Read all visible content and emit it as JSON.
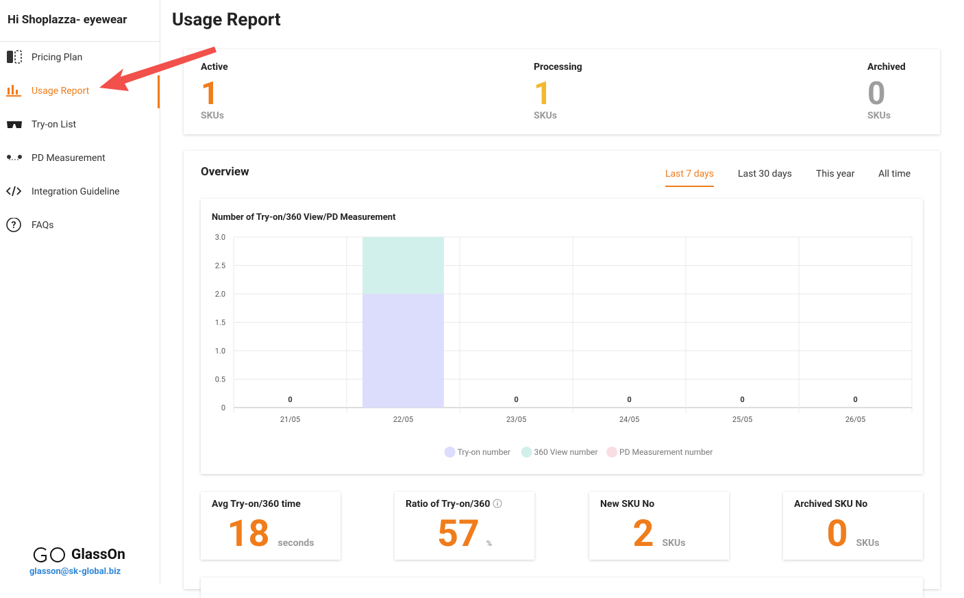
{
  "sidebar": {
    "greeting": "Hi Shoplazza- eyewear",
    "menu": [
      {
        "label": "Pricing Plan",
        "icon": "plan"
      },
      {
        "label": "Usage Report",
        "icon": "report",
        "active": true
      },
      {
        "label": "Try-on List",
        "icon": "glasses"
      },
      {
        "label": "PD Measurement",
        "icon": "pd"
      },
      {
        "label": "Integration Guideline",
        "icon": "code"
      },
      {
        "label": "FAQs",
        "icon": "faq"
      }
    ],
    "brand": "GlassOn",
    "email": "glasson@sk-global.biz"
  },
  "page_title": "Usage Report",
  "status": [
    {
      "label": "Active",
      "value": 1,
      "unit": "SKUs",
      "color": "#f07c1b"
    },
    {
      "label": "Processing",
      "value": 1,
      "unit": "SKUs",
      "color": "#f5b82e"
    },
    {
      "label": "Archived",
      "value": 0,
      "unit": "SKUs",
      "color": "#9e9e9e"
    }
  ],
  "overview": {
    "title": "Overview",
    "tabs": [
      {
        "label": "Last 7 days",
        "active": true
      },
      {
        "label": "Last 30 days"
      },
      {
        "label": "This year"
      },
      {
        "label": "All time"
      }
    ]
  },
  "chart_data": {
    "type": "stacked_bar",
    "title": "Number of Try-on/360 View/PD Measurement",
    "categories": [
      "21/05",
      "22/05",
      "23/05",
      "24/05",
      "25/05",
      "26/05"
    ],
    "series": [
      {
        "name": "Try-on number",
        "color": "#dcdcfc",
        "values": [
          0,
          2,
          0,
          0,
          0,
          0
        ]
      },
      {
        "name": "360 View number",
        "color": "#d1f0ec",
        "values": [
          0,
          1,
          0,
          0,
          0,
          0
        ]
      },
      {
        "name": "PD Measurement number",
        "color": "#fadde3",
        "values": [
          0,
          0,
          0,
          0,
          0,
          0
        ]
      }
    ],
    "totals": [
      0,
      3,
      0,
      0,
      0,
      0
    ],
    "ylim": [
      0,
      3
    ],
    "yticks": [
      0,
      0.5,
      {
        "value": 1,
        "label": "1.0"
      },
      1.5,
      {
        "value": 2,
        "label": "2.0"
      },
      2.5,
      {
        "value": 3,
        "label": "3.0"
      }
    ],
    "grid": true,
    "legend": "bottom"
  },
  "stats": {
    "value_color": "#f07c1b",
    "items": [
      {
        "label": "Avg Try-on/360 time",
        "value": 18,
        "unit": "seconds"
      },
      {
        "label": "Ratio of Try-on/360",
        "value": 57,
        "unit": "%",
        "info": true
      },
      {
        "label": "New SKU No",
        "value": 2,
        "unit": "SKUs"
      },
      {
        "label": "Archived SKU No",
        "value": 0,
        "unit": "SKUs"
      }
    ]
  }
}
